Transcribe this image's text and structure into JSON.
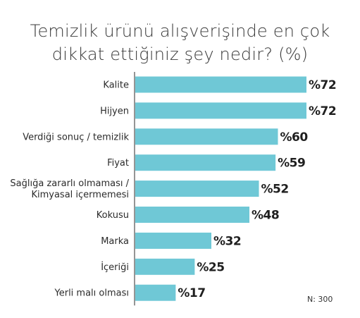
{
  "title": {
    "line1": "Temizlik ürünü alışverişinde en çok",
    "line2": "dikkat ettiğiniz şey nedir? (%)"
  },
  "sample_note": "N: 300",
  "colors": {
    "bar": "#6fc8d6",
    "axis": "#2b2b2b"
  },
  "chart_data": {
    "type": "bar",
    "orientation": "horizontal",
    "title": "Temizlik ürünü alışverişinde en çok dikkat ettiğiniz şey nedir? (%)",
    "categories": [
      [
        "Kalite"
      ],
      [
        "Hijyen"
      ],
      [
        "Verdiği sonuç / temizlik"
      ],
      [
        "Fiyat"
      ],
      [
        "Sağlığa zararlı olmaması /",
        "Kimyasal içermemesi"
      ],
      [
        "Kokusu"
      ],
      [
        "Marka"
      ],
      [
        "İçeriği"
      ],
      [
        "Yerli malı olması"
      ]
    ],
    "values": [
      72,
      72,
      60,
      59,
      52,
      48,
      32,
      25,
      17
    ],
    "value_prefix": "%",
    "grid": false
  }
}
